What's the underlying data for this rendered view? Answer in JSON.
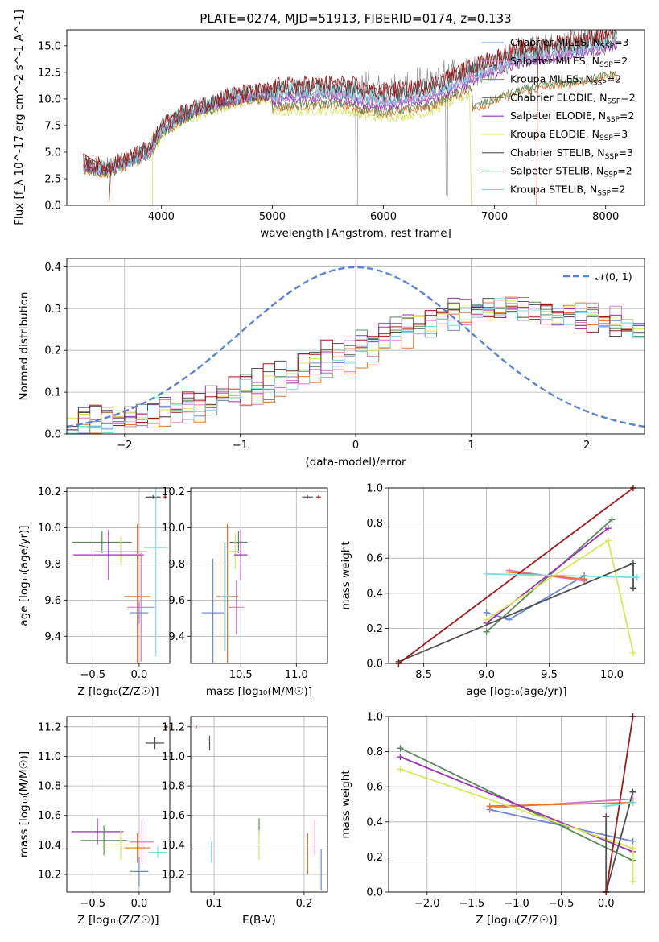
{
  "title": "PLATE=0274, MJD=51913, FIBERID=0174, z=0.133",
  "colors": {
    "chabrier_miles": "#6f86d6",
    "salpeter_miles": "#e377c2",
    "kroupa_miles": "#e8742a",
    "chabrier_elodie": "#5a8a5a",
    "salpeter_elodie": "#9c2fb5",
    "kroupa_elodie": "#d6e858",
    "chabrier_stelib": "#505050",
    "salpeter_stelib": "#a01818",
    "kroupa_stelib": "#7ddde6",
    "data": "#808080",
    "normal": "#5b84d0"
  },
  "legend": {
    "entries": [
      {
        "label": "Chabrier MILES, N",
        "sub": "SSP",
        "suffix": "=3",
        "color": "chabrier_miles"
      },
      {
        "label": "Salpeter MILES, N",
        "sub": "SSP",
        "suffix": "=2",
        "color": "salpeter_miles"
      },
      {
        "label": "Kroupa MILES, N",
        "sub": "SSP",
        "suffix": "=2",
        "color": "kroupa_miles"
      },
      {
        "label": "Chabrier ELODIE, N",
        "sub": "SSP",
        "suffix": "=2",
        "color": "chabrier_elodie"
      },
      {
        "label": "Salpeter ELODIE, N",
        "sub": "SSP",
        "suffix": "=2",
        "color": "salpeter_elodie"
      },
      {
        "label": "Kroupa ELODIE, N",
        "sub": "SSP",
        "suffix": "=3",
        "color": "kroupa_elodie"
      },
      {
        "label": "Chabrier STELIB, N",
        "sub": "SSP",
        "suffix": "=3",
        "color": "chabrier_stelib"
      },
      {
        "label": "Salpeter STELIB, N",
        "sub": "SSP",
        "suffix": "=2",
        "color": "salpeter_stelib"
      },
      {
        "label": "Kroupa STELIB, N",
        "sub": "SSP",
        "suffix": "=2",
        "color": "kroupa_stelib"
      }
    ],
    "normal_label": "𝒩(0, 1)"
  },
  "chart_data": [
    {
      "id": "spectrum",
      "type": "line",
      "xlabel": "wavelength [Angstrom, rest frame]",
      "ylabel": "Flux [f_λ 10^-17 erg cm^-2 s^-1 A^-1]",
      "xlim": [
        3150,
        8350
      ],
      "ylim": [
        0,
        16.5
      ],
      "xticks": [
        4000,
        5000,
        6000,
        7000,
        8000
      ],
      "yticks": [
        0.0,
        2.5,
        5.0,
        7.5,
        10.0,
        12.5,
        15.0
      ],
      "ytick_labels": [
        "0.0",
        "2.5",
        "5.0",
        "7.5",
        "10.0",
        "12.5",
        "15.0"
      ],
      "grid": false,
      "legend_position": "right",
      "continuum": {
        "x": [
          3300,
          3500,
          3700,
          3900,
          4000,
          4200,
          4400,
          4600,
          4800,
          5000,
          5200,
          5400,
          5600,
          5750,
          5800,
          6000,
          6200,
          6400,
          6600,
          6800,
          7000,
          7200,
          7400,
          7600,
          7800,
          8000,
          8100
        ],
        "y": [
          3.9,
          3.5,
          4.3,
          5.3,
          7.3,
          8.6,
          9.4,
          10.1,
          10.5,
          10.7,
          10.9,
          11.0,
          11.0,
          10.8,
          10.5,
          10.3,
          10.5,
          10.8,
          11.7,
          12.6,
          13.4,
          14.2,
          14.6,
          14.9,
          15.2,
          15.6,
          15.8
        ]
      }
    },
    {
      "id": "residuals",
      "type": "histogram",
      "xlabel": "(data-model)/error",
      "ylabel": "Normed distribution",
      "xlim": [
        -2.5,
        2.5
      ],
      "ylim": [
        0,
        0.42
      ],
      "xticks": [
        -2,
        -1,
        0,
        1,
        2
      ],
      "xtick_labels": [
        "−2",
        "−1",
        "0",
        "1",
        "2"
      ],
      "yticks": [
        0.0,
        0.1,
        0.2,
        0.3,
        0.4
      ],
      "ytick_labels": [
        "0.0",
        "0.1",
        "0.2",
        "0.3",
        "0.4"
      ],
      "grid": true,
      "bin_width": 0.1,
      "bin_start": -2.5,
      "envelope": {
        "x": [
          -2.5,
          -2.0,
          -1.5,
          -1.0,
          -0.5,
          0.0,
          0.5,
          1.0,
          1.5,
          2.0,
          2.5
        ],
        "y": [
          0.01,
          0.04,
          0.06,
          0.1,
          0.14,
          0.2,
          0.26,
          0.3,
          0.3,
          0.28,
          0.25
        ]
      }
    },
    {
      "id": "age-vs-Z",
      "type": "scatter",
      "xlabel": "Z [log₁₀(Z/Z☉)]",
      "ylabel": "age [log₁₀(age/yr)]",
      "xlim": [
        -0.78,
        0.33
      ],
      "ylim": [
        9.25,
        10.22
      ],
      "xticks": [
        -0.5,
        0.0
      ],
      "xtick_labels": [
        "−0.5",
        "0.0"
      ],
      "yticks": [
        9.4,
        9.6,
        9.8,
        10.0,
        10.2
      ],
      "ytick_labels": [
        "9.4",
        "9.6",
        "9.8",
        "10.0",
        "10.2"
      ],
      "grid": true,
      "points": [
        {
          "color": "chabrier_stelib",
          "x": 0.15,
          "y": 10.17,
          "xe": 0.08,
          "ye": 0.01
        },
        {
          "color": "salpeter_stelib",
          "x": 0.28,
          "y": 10.17,
          "xe": 0.02,
          "ye": 0.01
        },
        {
          "color": "chabrier_elodie",
          "x": -0.4,
          "y": 9.92,
          "xe": 0.32,
          "ye": 0.06
        },
        {
          "color": "kroupa_elodie",
          "x": -0.2,
          "y": 9.87,
          "xe": 0.28,
          "ye": 0.08
        },
        {
          "color": "salpeter_elodie",
          "x": -0.33,
          "y": 9.85,
          "xe": 0.38,
          "ye": 0.14
        },
        {
          "color": "kroupa_stelib",
          "x": 0.18,
          "y": 9.89,
          "xe": 0.13,
          "ye": 0.6
        },
        {
          "color": "kroupa_miles",
          "x": -0.02,
          "y": 9.62,
          "xe": 0.14,
          "ye": 0.4
        },
        {
          "color": "salpeter_miles",
          "x": 0.02,
          "y": 9.56,
          "xe": 0.15,
          "ye": 0.3
        },
        {
          "color": "chabrier_miles",
          "x": 0.0,
          "y": 9.53,
          "xe": 0.1,
          "ye": 0.06
        }
      ]
    },
    {
      "id": "age-vs-mass",
      "type": "scatter",
      "xlabel": "mass [log₁₀(M/M☉)]",
      "ylabel": "",
      "xlim": [
        10.05,
        11.28
      ],
      "ylim": [
        9.25,
        10.22
      ],
      "xticks": [
        10.5,
        11.0
      ],
      "xtick_labels": [
        "10.5",
        "11.0"
      ],
      "yticks": [
        9.4,
        9.6,
        9.8,
        10.0,
        10.2
      ],
      "ytick_labels": [
        "9.4",
        "9.6",
        "9.8",
        "10.0",
        "10.2"
      ],
      "grid": true,
      "points": [
        {
          "color": "chabrier_stelib",
          "x": 11.1,
          "y": 10.17,
          "xe": 0.05,
          "ye": 0.01
        },
        {
          "color": "salpeter_stelib",
          "x": 11.2,
          "y": 10.17,
          "xe": 0.02,
          "ye": 0.01
        },
        {
          "color": "kroupa_miles",
          "x": 10.38,
          "y": 9.62,
          "xe": 0.1,
          "ye": 0.4
        },
        {
          "color": "chabrier_elodie",
          "x": 10.48,
          "y": 9.92,
          "xe": 0.08,
          "ye": 0.06
        },
        {
          "color": "kroupa_elodie",
          "x": 10.45,
          "y": 9.87,
          "xe": 0.06,
          "ye": 0.1
        },
        {
          "color": "salpeter_elodie",
          "x": 10.5,
          "y": 9.85,
          "xe": 0.06,
          "ye": 0.14
        },
        {
          "color": "salpeter_miles",
          "x": 10.46,
          "y": 9.56,
          "xe": 0.07,
          "ye": 0.15
        },
        {
          "color": "chabrier_miles",
          "x": 10.25,
          "y": 9.53,
          "xe": 0.1,
          "ye": 0.3
        },
        {
          "color": "kroupa_stelib",
          "x": 10.36,
          "y": 9.62,
          "xe": 0.05,
          "ye": 0.3
        }
      ]
    },
    {
      "id": "massweight-vs-age",
      "type": "line",
      "xlabel": "age [log₁₀(age/yr)]",
      "ylabel": "mass weight",
      "xlim": [
        8.22,
        10.26
      ],
      "ylim": [
        0,
        1.0
      ],
      "xticks": [
        8.5,
        9.0,
        9.5,
        10.0
      ],
      "xtick_labels": [
        "8.5",
        "9.0",
        "9.5",
        "10.0"
      ],
      "yticks": [
        0.0,
        0.2,
        0.4,
        0.6,
        0.8,
        1.0
      ],
      "ytick_labels": [
        "0.0",
        "0.2",
        "0.4",
        "0.6",
        "0.8",
        "1.0"
      ],
      "grid": true,
      "series": [
        {
          "color": "chabrier_miles",
          "x": [
            9.0,
            9.18,
            9.78
          ],
          "y": [
            0.29,
            0.25,
            0.5
          ]
        },
        {
          "color": "salpeter_miles",
          "x": [
            9.18,
            9.78
          ],
          "y": [
            0.53,
            0.47
          ]
        },
        {
          "color": "kroupa_miles",
          "x": [
            9.18,
            9.78
          ],
          "y": [
            0.52,
            0.48
          ]
        },
        {
          "color": "chabrier_elodie",
          "x": [
            9.0,
            10.0
          ],
          "y": [
            0.18,
            0.82
          ]
        },
        {
          "color": "salpeter_elodie",
          "x": [
            9.0,
            9.97
          ],
          "y": [
            0.23,
            0.77
          ]
        },
        {
          "color": "kroupa_elodie",
          "x": [
            9.0,
            9.97,
            10.17
          ],
          "y": [
            0.25,
            0.7,
            0.06
          ]
        },
        {
          "color": "chabrier_stelib",
          "x": [
            8.3,
            10.17,
            10.17
          ],
          "y": [
            0.01,
            0.57,
            0.43
          ]
        },
        {
          "color": "salpeter_stelib",
          "x": [
            8.3,
            10.17
          ],
          "y": [
            0.0,
            1.0
          ]
        },
        {
          "color": "kroupa_stelib",
          "x": [
            9.0,
            10.2
          ],
          "y": [
            0.51,
            0.49
          ]
        }
      ]
    },
    {
      "id": "mass-vs-Z",
      "type": "scatter",
      "xlabel": "Z [log₁₀(Z/Z☉)]",
      "ylabel": "mass [log₁₀(M/M☉)]",
      "xlim": [
        -0.78,
        0.33
      ],
      "ylim": [
        10.08,
        11.27
      ],
      "xticks": [
        -0.5,
        0.0
      ],
      "xtick_labels": [
        "−0.5",
        "0.0"
      ],
      "yticks": [
        10.2,
        10.4,
        10.6,
        10.8,
        11.0,
        11.2
      ],
      "ytick_labels": [
        "10.2",
        "10.4",
        "10.6",
        "10.8",
        "11.0",
        "11.2"
      ],
      "grid": true,
      "points": [
        {
          "color": "salpeter_stelib",
          "x": 0.29,
          "y": 11.2,
          "xe": 0.02,
          "ye": 0.01
        },
        {
          "color": "chabrier_stelib",
          "x": 0.17,
          "y": 11.09,
          "xe": 0.1,
          "ye": 0.04
        },
        {
          "color": "salpeter_elodie",
          "x": -0.45,
          "y": 10.49,
          "xe": 0.28,
          "ye": 0.09
        },
        {
          "color": "chabrier_elodie",
          "x": -0.38,
          "y": 10.43,
          "xe": 0.25,
          "ye": 0.1
        },
        {
          "color": "kroupa_elodie",
          "x": -0.2,
          "y": 10.4,
          "xe": 0.2,
          "ye": 0.1
        },
        {
          "color": "salpeter_miles",
          "x": 0.03,
          "y": 10.42,
          "xe": 0.13,
          "ye": 0.15
        },
        {
          "color": "kroupa_miles",
          "x": -0.02,
          "y": 10.38,
          "xe": 0.14,
          "ye": 0.1
        },
        {
          "color": "kroupa_stelib",
          "x": 0.2,
          "y": 10.35,
          "xe": 0.1,
          "ye": 0.04
        },
        {
          "color": "chabrier_miles",
          "x": 0.0,
          "y": 10.22,
          "xe": 0.1,
          "ye": 0.1
        }
      ]
    },
    {
      "id": "mass-vs-ebv",
      "type": "scatter",
      "xlabel": "E(B-V)",
      "ylabel": "",
      "xlim": [
        0.074,
        0.226
      ],
      "ylim": [
        10.08,
        11.27
      ],
      "xticks": [
        0.1,
        0.2
      ],
      "xtick_labels": [
        "0.1",
        "0.2"
      ],
      "yticks": [
        10.2,
        10.4,
        10.6,
        10.8,
        11.0,
        11.2
      ],
      "ytick_labels": [
        "10.2",
        "10.4",
        "10.6",
        "10.8",
        "11.0",
        "11.2"
      ],
      "grid": true,
      "points": [
        {
          "color": "salpeter_stelib",
          "x": 0.08,
          "y": 11.2,
          "xe": 0.0006,
          "ye": 0.01
        },
        {
          "color": "chabrier_stelib",
          "x": 0.095,
          "y": 11.09,
          "xe": 0.0006,
          "ye": 0.05
        },
        {
          "color": "chabrier_elodie",
          "x": 0.15,
          "y": 10.52,
          "xe": 0.0006,
          "ye": 0.06
        },
        {
          "color": "kroupa_elodie",
          "x": 0.15,
          "y": 10.4,
          "xe": 0.0006,
          "ye": 0.1
        },
        {
          "color": "kroupa_stelib",
          "x": 0.097,
          "y": 10.35,
          "xe": 0.0006,
          "ye": 0.07
        },
        {
          "color": "kroupa_miles",
          "x": 0.204,
          "y": 10.34,
          "xe": 0.0006,
          "ye": 0.14
        },
        {
          "color": "salpeter_miles",
          "x": 0.212,
          "y": 10.45,
          "xe": 0.0006,
          "ye": 0.12
        },
        {
          "color": "chabrier_miles",
          "x": 0.219,
          "y": 10.23,
          "xe": 0.0006,
          "ye": 0.14
        }
      ]
    },
    {
      "id": "massweight-vs-Z",
      "type": "line",
      "xlabel": "Z [log₁₀(Z/Z☉)]",
      "ylabel": "mass weight",
      "xlim": [
        -2.43,
        0.43
      ],
      "ylim": [
        0,
        1.0
      ],
      "xticks": [
        -2.0,
        -1.5,
        -1.0,
        -0.5,
        0.0
      ],
      "xtick_labels": [
        "−2.0",
        "−1.5",
        "−1.0",
        "−0.5",
        "0.0"
      ],
      "yticks": [
        0.0,
        0.2,
        0.4,
        0.6,
        0.8,
        1.0
      ],
      "ytick_labels": [
        "0.0",
        "0.2",
        "0.4",
        "0.6",
        "0.8",
        "1.0"
      ],
      "grid": true,
      "series": [
        {
          "color": "chabrier_miles",
          "x": [
            -1.3,
            0.3
          ],
          "y": [
            0.47,
            0.29
          ]
        },
        {
          "color": "salpeter_miles",
          "x": [
            -1.3,
            0.3
          ],
          "y": [
            0.48,
            0.53
          ]
        },
        {
          "color": "kroupa_miles",
          "x": [
            -1.3,
            0.3
          ],
          "y": [
            0.49,
            0.51
          ]
        },
        {
          "color": "chabrier_elodie",
          "x": [
            -2.3,
            0.3
          ],
          "y": [
            0.82,
            0.18
          ]
        },
        {
          "color": "salpeter_elodie",
          "x": [
            -2.3,
            0.3
          ],
          "y": [
            0.77,
            0.23
          ]
        },
        {
          "color": "kroupa_elodie",
          "x": [
            -2.3,
            0.3,
            0.3
          ],
          "y": [
            0.7,
            0.25,
            0.06
          ]
        },
        {
          "color": "chabrier_stelib",
          "x": [
            0.0,
            0.0,
            0.3
          ],
          "y": [
            0.43,
            0.0,
            0.57
          ]
        },
        {
          "color": "salpeter_stelib",
          "x": [
            0.0,
            0.3
          ],
          "y": [
            0.0,
            1.0
          ]
        },
        {
          "color": "kroupa_stelib",
          "x": [
            0.0,
            0.3
          ],
          "y": [
            0.49,
            0.51
          ]
        }
      ]
    }
  ]
}
